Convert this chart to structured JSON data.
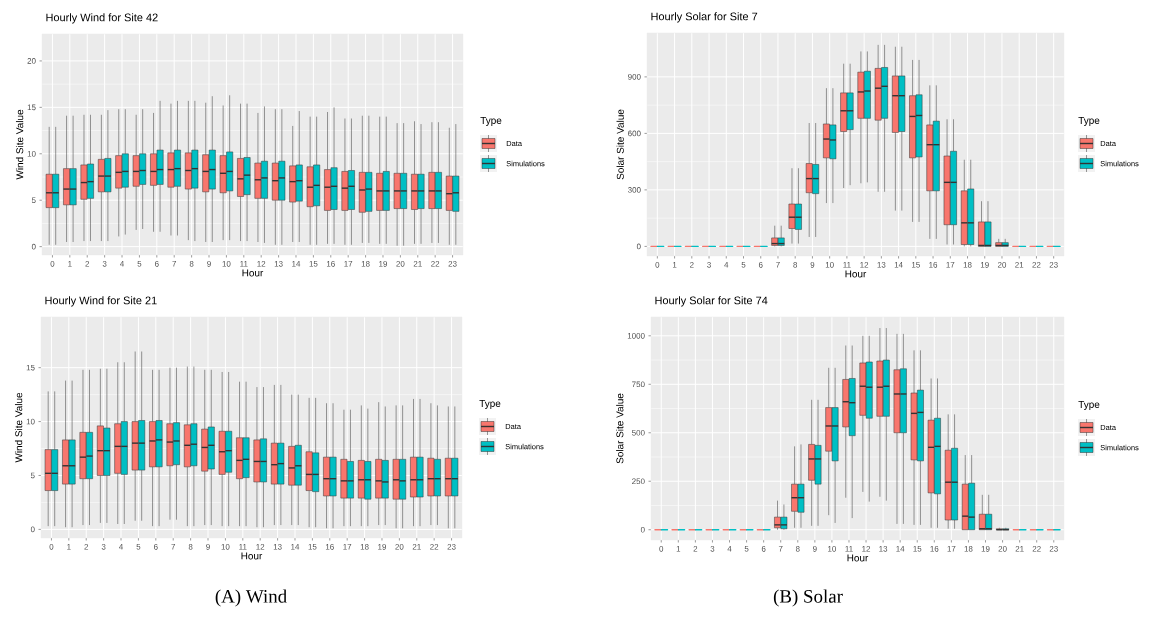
{
  "chart_data": [
    {
      "type": "box",
      "title": "Hourly Wind for Site 42",
      "xlabel": "Hour",
      "ylabel": "Wind Site Value",
      "legend_title": "Type",
      "legend": "right",
      "grid": true,
      "categories": [
        "0",
        "1",
        "2",
        "3",
        "4",
        "5",
        "6",
        "7",
        "8",
        "9",
        "10",
        "11",
        "12",
        "13",
        "14",
        "15",
        "16",
        "17",
        "18",
        "19",
        "20",
        "21",
        "22",
        "23"
      ],
      "ylim": [
        -0.9,
        22.9
      ],
      "yticks": [
        0,
        5,
        10,
        15,
        20
      ],
      "series": [
        {
          "name": "Data",
          "color": "#f8766d",
          "boxes": [
            {
              "low": 0.2,
              "q1": 4.2,
              "median": 5.8,
              "q3": 7.8,
              "high": 12.9
            },
            {
              "low": 0.5,
              "q1": 4.5,
              "median": 6.2,
              "q3": 8.4,
              "high": 14.1
            },
            {
              "low": 0.6,
              "q1": 5.1,
              "median": 6.9,
              "q3": 8.8,
              "high": 14.2
            },
            {
              "low": 0.6,
              "q1": 5.9,
              "median": 7.6,
              "q3": 9.4,
              "high": 14.2
            },
            {
              "low": 1.1,
              "q1": 6.3,
              "median": 8.0,
              "q3": 9.8,
              "high": 14.8
            },
            {
              "low": 1.8,
              "q1": 6.5,
              "median": 8.1,
              "q3": 9.8,
              "high": 14.2
            },
            {
              "low": 1.6,
              "q1": 6.6,
              "median": 8.1,
              "q3": 10.0,
              "high": 14.4
            },
            {
              "low": 1.2,
              "q1": 6.4,
              "median": 8.3,
              "q3": 10.1,
              "high": 15.4
            },
            {
              "low": 0.7,
              "q1": 6.2,
              "median": 8.2,
              "q3": 10.1,
              "high": 15.7
            },
            {
              "low": 0.5,
              "q1": 5.9,
              "median": 8.1,
              "q3": 9.9,
              "high": 15.5
            },
            {
              "low": 0.7,
              "q1": 5.8,
              "median": 7.9,
              "q3": 9.8,
              "high": 15.2
            },
            {
              "low": 0.6,
              "q1": 5.4,
              "median": 7.3,
              "q3": 9.5,
              "high": 15.4
            },
            {
              "low": 0.5,
              "q1": 5.2,
              "median": 7.2,
              "q3": 9.0,
              "high": 14.4
            },
            {
              "low": 0.2,
              "q1": 5.0,
              "median": 7.1,
              "q3": 9.0,
              "high": 14.8
            },
            {
              "low": 0.5,
              "q1": 4.8,
              "median": 7.0,
              "q3": 8.7,
              "high": 13.0
            },
            {
              "low": 0.2,
              "q1": 4.3,
              "median": 6.4,
              "q3": 8.6,
              "high": 14.0
            },
            {
              "low": 0.3,
              "q1": 3.9,
              "median": 6.4,
              "q3": 8.3,
              "high": 14.5
            },
            {
              "low": 0.2,
              "q1": 3.9,
              "median": 6.3,
              "q3": 8.1,
              "high": 13.8
            },
            {
              "low": 0.4,
              "q1": 3.7,
              "median": 6.1,
              "q3": 8.0,
              "high": 14.1
            },
            {
              "low": 0.3,
              "q1": 3.9,
              "median": 6.0,
              "q3": 7.9,
              "high": 14.0
            },
            {
              "low": 0.1,
              "q1": 4.1,
              "median": 6.0,
              "q3": 7.9,
              "high": 13.3
            },
            {
              "low": 0.3,
              "q1": 4.0,
              "median": 6.0,
              "q3": 7.8,
              "high": 13.5
            },
            {
              "low": 0.4,
              "q1": 4.1,
              "median": 6.0,
              "q3": 8.0,
              "high": 13.4
            },
            {
              "low": 0.2,
              "q1": 3.9,
              "median": 5.7,
              "q3": 7.6,
              "high": 12.8
            }
          ]
        },
        {
          "name": "Simulations",
          "color": "#00bfc4",
          "boxes": [
            {
              "low": 0.2,
              "q1": 4.2,
              "median": 5.8,
              "q3": 7.8,
              "high": 12.9
            },
            {
              "low": 0.5,
              "q1": 4.5,
              "median": 6.2,
              "q3": 8.4,
              "high": 14.1
            },
            {
              "low": 0.6,
              "q1": 5.2,
              "median": 7.0,
              "q3": 8.9,
              "high": 14.2
            },
            {
              "low": 0.6,
              "q1": 5.9,
              "median": 7.6,
              "q3": 9.5,
              "high": 14.7
            },
            {
              "low": 1.3,
              "q1": 6.4,
              "median": 8.1,
              "q3": 10.0,
              "high": 14.8
            },
            {
              "low": 1.9,
              "q1": 6.7,
              "median": 8.2,
              "q3": 10.0,
              "high": 14.8
            },
            {
              "low": 1.6,
              "q1": 6.7,
              "median": 8.3,
              "q3": 10.4,
              "high": 15.7
            },
            {
              "low": 1.2,
              "q1": 6.5,
              "median": 8.4,
              "q3": 10.4,
              "high": 15.7
            },
            {
              "low": 0.6,
              "q1": 6.3,
              "median": 8.4,
              "q3": 10.4,
              "high": 15.7
            },
            {
              "low": 0.5,
              "q1": 6.2,
              "median": 8.3,
              "q3": 10.4,
              "high": 16.2
            },
            {
              "low": 0.7,
              "q1": 6.0,
              "median": 8.1,
              "q3": 10.2,
              "high": 16.3
            },
            {
              "low": 0.6,
              "q1": 5.6,
              "median": 7.7,
              "q3": 9.6,
              "high": 15.4
            },
            {
              "low": 0.4,
              "q1": 5.2,
              "median": 7.4,
              "q3": 9.2,
              "high": 15.1
            },
            {
              "low": 0.2,
              "q1": 5.0,
              "median": 7.4,
              "q3": 9.2,
              "high": 14.8
            },
            {
              "low": 0.5,
              "q1": 4.9,
              "median": 7.1,
              "q3": 8.8,
              "high": 14.6
            },
            {
              "low": 0.2,
              "q1": 4.4,
              "median": 6.6,
              "q3": 8.8,
              "high": 14.0
            },
            {
              "low": 0.3,
              "q1": 4.0,
              "median": 6.5,
              "q3": 8.5,
              "high": 15.0
            },
            {
              "low": 0.2,
              "q1": 4.0,
              "median": 6.5,
              "q3": 8.2,
              "high": 13.8
            },
            {
              "low": 0.4,
              "q1": 3.8,
              "median": 6.2,
              "q3": 8.0,
              "high": 14.1
            },
            {
              "low": 0.3,
              "q1": 3.9,
              "median": 6.0,
              "q3": 8.1,
              "high": 14.0
            },
            {
              "low": 0.1,
              "q1": 4.1,
              "median": 6.0,
              "q3": 7.9,
              "high": 13.3
            },
            {
              "low": 0.3,
              "q1": 4.1,
              "median": 6.0,
              "q3": 7.8,
              "high": 13.2
            },
            {
              "low": 0.4,
              "q1": 4.1,
              "median": 6.0,
              "q3": 8.0,
              "high": 13.4
            },
            {
              "low": 0.2,
              "q1": 3.8,
              "median": 5.8,
              "q3": 7.6,
              "high": 13.2
            }
          ]
        }
      ]
    },
    {
      "type": "box",
      "title": "Hourly Solar for Site 7",
      "xlabel": "Hour",
      "ylabel": "Solar Site Value",
      "legend_title": "Type",
      "legend": "right",
      "grid": true,
      "categories": [
        "0",
        "1",
        "2",
        "3",
        "4",
        "5",
        "6",
        "7",
        "8",
        "9",
        "10",
        "11",
        "12",
        "13",
        "14",
        "15",
        "16",
        "17",
        "18",
        "19",
        "20",
        "21",
        "22",
        "23"
      ],
      "ylim": [
        -51,
        1133
      ],
      "yticks": [
        0,
        300,
        600,
        900
      ],
      "series": [
        {
          "name": "Data",
          "color": "#f8766d",
          "boxes": [
            {
              "low": 0,
              "q1": 0,
              "median": 0,
              "q3": 0,
              "high": 0
            },
            {
              "low": 0,
              "q1": 0,
              "median": 0,
              "q3": 0,
              "high": 0
            },
            {
              "low": 0,
              "q1": 0,
              "median": 0,
              "q3": 0,
              "high": 0
            },
            {
              "low": 0,
              "q1": 0,
              "median": 0,
              "q3": 0,
              "high": 0
            },
            {
              "low": 0,
              "q1": 0,
              "median": 0,
              "q3": 0,
              "high": 0
            },
            {
              "low": 0,
              "q1": 0,
              "median": 0,
              "q3": 0,
              "high": 0
            },
            {
              "low": 0,
              "q1": 0,
              "median": 0,
              "q3": 0,
              "high": 0
            },
            {
              "low": 0,
              "q1": 5,
              "median": 15,
              "q3": 45,
              "high": 110
            },
            {
              "low": 15,
              "q1": 95,
              "median": 155,
              "q3": 225,
              "high": 415
            },
            {
              "low": 50,
              "q1": 285,
              "median": 360,
              "q3": 440,
              "high": 655
            },
            {
              "low": 230,
              "q1": 470,
              "median": 570,
              "q3": 650,
              "high": 840
            },
            {
              "low": 310,
              "q1": 610,
              "median": 720,
              "q3": 815,
              "high": 970
            },
            {
              "low": 335,
              "q1": 680,
              "median": 820,
              "q3": 925,
              "high": 1035
            },
            {
              "low": 290,
              "q1": 670,
              "median": 840,
              "q3": 945,
              "high": 1070
            },
            {
              "low": 190,
              "q1": 605,
              "median": 800,
              "q3": 905,
              "high": 1060
            },
            {
              "low": 130,
              "q1": 470,
              "median": 690,
              "q3": 800,
              "high": 990
            },
            {
              "low": 40,
              "q1": 295,
              "median": 540,
              "q3": 645,
              "high": 855
            },
            {
              "low": 10,
              "q1": 115,
              "median": 340,
              "q3": 480,
              "high": 675
            },
            {
              "low": 0,
              "q1": 10,
              "median": 125,
              "q3": 295,
              "high": 460
            },
            {
              "low": 0,
              "q1": 0,
              "median": 5,
              "q3": 130,
              "high": 240
            },
            {
              "low": 0,
              "q1": 0,
              "median": 5,
              "q3": 20,
              "high": 40
            },
            {
              "low": 0,
              "q1": 0,
              "median": 0,
              "q3": 0,
              "high": 0
            },
            {
              "low": 0,
              "q1": 0,
              "median": 0,
              "q3": 0,
              "high": 0
            },
            {
              "low": 0,
              "q1": 0,
              "median": 0,
              "q3": 0,
              "high": 0
            }
          ]
        },
        {
          "name": "Simulations",
          "color": "#00bfc4",
          "boxes": [
            {
              "low": 0,
              "q1": 0,
              "median": 0,
              "q3": 0,
              "high": 0
            },
            {
              "low": 0,
              "q1": 0,
              "median": 0,
              "q3": 0,
              "high": 0
            },
            {
              "low": 0,
              "q1": 0,
              "median": 0,
              "q3": 0,
              "high": 0
            },
            {
              "low": 0,
              "q1": 0,
              "median": 0,
              "q3": 0,
              "high": 0
            },
            {
              "low": 0,
              "q1": 0,
              "median": 0,
              "q3": 0,
              "high": 0
            },
            {
              "low": 0,
              "q1": 0,
              "median": 0,
              "q3": 0,
              "high": 0
            },
            {
              "low": 0,
              "q1": 0,
              "median": 0,
              "q3": 0,
              "high": 0
            },
            {
              "low": 0,
              "q1": 5,
              "median": 15,
              "q3": 45,
              "high": 110
            },
            {
              "low": 15,
              "q1": 90,
              "median": 155,
              "q3": 225,
              "high": 415
            },
            {
              "low": 50,
              "q1": 280,
              "median": 360,
              "q3": 435,
              "high": 655
            },
            {
              "low": 230,
              "q1": 465,
              "median": 565,
              "q3": 645,
              "high": 840
            },
            {
              "low": 325,
              "q1": 620,
              "median": 720,
              "q3": 815,
              "high": 970
            },
            {
              "low": 340,
              "q1": 680,
              "median": 825,
              "q3": 930,
              "high": 1035
            },
            {
              "low": 290,
              "q1": 680,
              "median": 850,
              "q3": 950,
              "high": 1070
            },
            {
              "low": 190,
              "q1": 610,
              "median": 800,
              "q3": 905,
              "high": 1060
            },
            {
              "low": 130,
              "q1": 475,
              "median": 695,
              "q3": 805,
              "high": 990
            },
            {
              "low": 40,
              "q1": 295,
              "median": 540,
              "q3": 665,
              "high": 855
            },
            {
              "low": 10,
              "q1": 115,
              "median": 340,
              "q3": 505,
              "high": 675
            },
            {
              "low": 0,
              "q1": 10,
              "median": 125,
              "q3": 305,
              "high": 460
            },
            {
              "low": 0,
              "q1": 0,
              "median": 5,
              "q3": 130,
              "high": 240
            },
            {
              "low": 0,
              "q1": 0,
              "median": 5,
              "q3": 20,
              "high": 40
            },
            {
              "low": 0,
              "q1": 0,
              "median": 0,
              "q3": 0,
              "high": 0
            },
            {
              "low": 0,
              "q1": 0,
              "median": 0,
              "q3": 0,
              "high": 0
            },
            {
              "low": 0,
              "q1": 0,
              "median": 0,
              "q3": 0,
              "high": 0
            }
          ]
        }
      ]
    },
    {
      "type": "box",
      "title": "Hourly Wind for Site 21",
      "xlabel": "Hour",
      "ylabel": "Wind Site Value",
      "legend_title": "Type",
      "legend": "right",
      "grid": true,
      "categories": [
        "0",
        "1",
        "2",
        "3",
        "4",
        "5",
        "6",
        "7",
        "8",
        "9",
        "10",
        "11",
        "12",
        "13",
        "14",
        "15",
        "16",
        "17",
        "18",
        "19",
        "20",
        "21",
        "22",
        "23"
      ],
      "ylim": [
        -0.8,
        19.7
      ],
      "yticks": [
        0,
        5,
        10,
        15
      ],
      "annotations": [
        "(A) Wind"
      ],
      "series": [
        {
          "name": "Data",
          "color": "#f8766d",
          "boxes": [
            {
              "low": 0.3,
              "q1": 3.6,
              "median": 5.2,
              "q3": 7.4,
              "high": 12.8
            },
            {
              "low": 0.2,
              "q1": 4.2,
              "median": 5.9,
              "q3": 8.3,
              "high": 13.8
            },
            {
              "low": 0.4,
              "q1": 4.7,
              "median": 6.7,
              "q3": 9.0,
              "high": 14.8
            },
            {
              "low": 0.6,
              "q1": 5.0,
              "median": 7.3,
              "q3": 9.6,
              "high": 14.9
            },
            {
              "low": 0.5,
              "q1": 5.2,
              "median": 7.7,
              "q3": 9.8,
              "high": 15.5
            },
            {
              "low": 0.8,
              "q1": 5.5,
              "median": 8.0,
              "q3": 10.0,
              "high": 16.5
            },
            {
              "low": 0.3,
              "q1": 5.8,
              "median": 8.2,
              "q3": 10.0,
              "high": 14.8
            },
            {
              "low": 0.9,
              "q1": 5.9,
              "median": 8.1,
              "q3": 9.8,
              "high": 15.0
            },
            {
              "low": 0.3,
              "q1": 5.8,
              "median": 7.8,
              "q3": 9.7,
              "high": 15.1
            },
            {
              "low": 0.4,
              "q1": 5.4,
              "median": 7.6,
              "q3": 9.3,
              "high": 14.8
            },
            {
              "low": 0.3,
              "q1": 5.1,
              "median": 7.2,
              "q3": 9.1,
              "high": 14.6
            },
            {
              "low": 0.3,
              "q1": 4.7,
              "median": 6.4,
              "q3": 8.5,
              "high": 13.7
            },
            {
              "low": 0.2,
              "q1": 4.4,
              "median": 6.3,
              "q3": 8.3,
              "high": 13.2
            },
            {
              "low": 0.4,
              "q1": 4.2,
              "median": 6.0,
              "q3": 8.0,
              "high": 13.4
            },
            {
              "low": 0.4,
              "q1": 4.1,
              "median": 5.7,
              "q3": 7.7,
              "high": 12.5
            },
            {
              "low": 0.2,
              "q1": 3.6,
              "median": 5.1,
              "q3": 7.2,
              "high": 12.2
            },
            {
              "low": 0.1,
              "q1": 3.1,
              "median": 4.7,
              "q3": 6.7,
              "high": 11.7
            },
            {
              "low": 0.3,
              "q1": 2.9,
              "median": 4.5,
              "q3": 6.5,
              "high": 11.1
            },
            {
              "low": 0.3,
              "q1": 2.9,
              "median": 4.6,
              "q3": 6.4,
              "high": 11.5
            },
            {
              "low": 0.4,
              "q1": 2.9,
              "median": 4.5,
              "q3": 6.5,
              "high": 11.8
            },
            {
              "low": 0.1,
              "q1": 2.8,
              "median": 4.6,
              "q3": 6.5,
              "high": 11.5
            },
            {
              "low": 0.3,
              "q1": 3.0,
              "median": 4.6,
              "q3": 6.7,
              "high": 12.1
            },
            {
              "low": 0.4,
              "q1": 3.1,
              "median": 4.7,
              "q3": 6.6,
              "high": 11.7
            },
            {
              "low": 0.1,
              "q1": 3.1,
              "median": 4.7,
              "q3": 6.6,
              "high": 11.4
            }
          ]
        },
        {
          "name": "Simulations",
          "color": "#00bfc4",
          "boxes": [
            {
              "low": 0.3,
              "q1": 3.6,
              "median": 5.2,
              "q3": 7.4,
              "high": 12.8
            },
            {
              "low": 0.2,
              "q1": 4.2,
              "median": 5.9,
              "q3": 8.3,
              "high": 13.8
            },
            {
              "low": 0.4,
              "q1": 4.7,
              "median": 6.8,
              "q3": 9.0,
              "high": 14.8
            },
            {
              "low": 0.6,
              "q1": 5.0,
              "median": 7.3,
              "q3": 9.4,
              "high": 14.9
            },
            {
              "low": 0.5,
              "q1": 5.1,
              "median": 7.7,
              "q3": 10.0,
              "high": 15.5
            },
            {
              "low": 0.8,
              "q1": 5.5,
              "median": 8.0,
              "q3": 10.1,
              "high": 16.5
            },
            {
              "low": 0.3,
              "q1": 5.8,
              "median": 8.3,
              "q3": 10.1,
              "high": 14.8
            },
            {
              "low": 0.9,
              "q1": 6.0,
              "median": 8.2,
              "q3": 9.9,
              "high": 15.0
            },
            {
              "low": 0.3,
              "q1": 5.9,
              "median": 7.9,
              "q3": 9.8,
              "high": 15.1
            },
            {
              "low": 0.4,
              "q1": 5.6,
              "median": 7.8,
              "q3": 9.5,
              "high": 14.8
            },
            {
              "low": 0.3,
              "q1": 5.3,
              "median": 7.3,
              "q3": 9.1,
              "high": 14.6
            },
            {
              "low": 0.3,
              "q1": 4.8,
              "median": 6.5,
              "q3": 8.5,
              "high": 13.7
            },
            {
              "low": 0.2,
              "q1": 4.4,
              "median": 6.3,
              "q3": 8.4,
              "high": 13.2
            },
            {
              "low": 0.4,
              "q1": 4.2,
              "median": 6.1,
              "q3": 8.0,
              "high": 13.4
            },
            {
              "low": 0.4,
              "q1": 4.1,
              "median": 5.9,
              "q3": 7.8,
              "high": 12.5
            },
            {
              "low": 0.2,
              "q1": 3.5,
              "median": 5.1,
              "q3": 7.1,
              "high": 12.2
            },
            {
              "low": 0.1,
              "q1": 3.1,
              "median": 4.7,
              "q3": 6.7,
              "high": 11.7
            },
            {
              "low": 0.3,
              "q1": 2.9,
              "median": 4.5,
              "q3": 6.3,
              "high": 11.1
            },
            {
              "low": 0.3,
              "q1": 2.8,
              "median": 4.6,
              "q3": 6.3,
              "high": 11.2
            },
            {
              "low": 0.4,
              "q1": 2.9,
              "median": 4.4,
              "q3": 6.4,
              "high": 11.4
            },
            {
              "low": 0.1,
              "q1": 2.8,
              "median": 4.5,
              "q3": 6.5,
              "high": 11.5
            },
            {
              "low": 0.3,
              "q1": 3.0,
              "median": 4.6,
              "q3": 6.7,
              "high": 12.1
            },
            {
              "low": 0.4,
              "q1": 3.1,
              "median": 4.7,
              "q3": 6.5,
              "high": 11.5
            },
            {
              "low": 0.1,
              "q1": 3.1,
              "median": 4.7,
              "q3": 6.6,
              "high": 11.4
            }
          ]
        }
      ]
    },
    {
      "type": "box",
      "title": "Hourly Solar for Site 74",
      "xlabel": "Hour",
      "ylabel": "Solar Site Value",
      "legend_title": "Type",
      "legend": "right",
      "grid": true,
      "categories": [
        "0",
        "1",
        "2",
        "3",
        "4",
        "5",
        "6",
        "7",
        "8",
        "9",
        "10",
        "11",
        "12",
        "13",
        "14",
        "15",
        "16",
        "17",
        "18",
        "19",
        "20",
        "21",
        "22",
        "23"
      ],
      "ylim": [
        -53,
        1097
      ],
      "yticks": [
        0,
        250,
        500,
        750,
        1000
      ],
      "annotations": [
        "(B) Solar"
      ],
      "series": [
        {
          "name": "Data",
          "color": "#f8766d",
          "boxes": [
            {
              "low": 0,
              "q1": 0,
              "median": 0,
              "q3": 0,
              "high": 0
            },
            {
              "low": 0,
              "q1": 0,
              "median": 0,
              "q3": 0,
              "high": 0
            },
            {
              "low": 0,
              "q1": 0,
              "median": 0,
              "q3": 0,
              "high": 0
            },
            {
              "low": 0,
              "q1": 0,
              "median": 0,
              "q3": 0,
              "high": 0
            },
            {
              "low": 0,
              "q1": 0,
              "median": 0,
              "q3": 0,
              "high": 0
            },
            {
              "low": 0,
              "q1": 0,
              "median": 0,
              "q3": 0,
              "high": 0
            },
            {
              "low": 0,
              "q1": 0,
              "median": 0,
              "q3": 0,
              "high": 0
            },
            {
              "low": 0,
              "q1": 10,
              "median": 25,
              "q3": 65,
              "high": 150
            },
            {
              "low": 10,
              "q1": 95,
              "median": 165,
              "q3": 235,
              "high": 430
            },
            {
              "low": 20,
              "q1": 255,
              "median": 365,
              "q3": 440,
              "high": 670
            },
            {
              "low": 75,
              "q1": 405,
              "median": 535,
              "q3": 630,
              "high": 835
            },
            {
              "low": 165,
              "q1": 530,
              "median": 660,
              "q3": 775,
              "high": 950
            },
            {
              "low": 195,
              "q1": 590,
              "median": 740,
              "q3": 860,
              "high": 1000
            },
            {
              "low": 170,
              "q1": 585,
              "median": 735,
              "q3": 870,
              "high": 1040
            },
            {
              "low": 30,
              "q1": 500,
              "median": 700,
              "q3": 825,
              "high": 1010
            },
            {
              "low": 25,
              "q1": 360,
              "median": 600,
              "q3": 705,
              "high": 925
            },
            {
              "low": 10,
              "q1": 190,
              "median": 425,
              "q3": 565,
              "high": 780
            },
            {
              "low": 5,
              "q1": 50,
              "median": 245,
              "q3": 410,
              "high": 595
            },
            {
              "low": 0,
              "q1": 0,
              "median": 70,
              "q3": 235,
              "high": 385
            },
            {
              "low": 0,
              "q1": 0,
              "median": 5,
              "q3": 80,
              "high": 180
            },
            {
              "low": 0,
              "q1": 0,
              "median": 0,
              "q3": 5,
              "high": 10
            },
            {
              "low": 0,
              "q1": 0,
              "median": 0,
              "q3": 0,
              "high": 0
            },
            {
              "low": 0,
              "q1": 0,
              "median": 0,
              "q3": 0,
              "high": 0
            },
            {
              "low": 0,
              "q1": 0,
              "median": 0,
              "q3": 0,
              "high": 0
            }
          ]
        },
        {
          "name": "Simulations",
          "color": "#00bfc4",
          "boxes": [
            {
              "low": 0,
              "q1": 0,
              "median": 0,
              "q3": 0,
              "high": 0
            },
            {
              "low": 0,
              "q1": 0,
              "median": 0,
              "q3": 0,
              "high": 0
            },
            {
              "low": 0,
              "q1": 0,
              "median": 0,
              "q3": 0,
              "high": 0
            },
            {
              "low": 0,
              "q1": 0,
              "median": 0,
              "q3": 0,
              "high": 0
            },
            {
              "low": 0,
              "q1": 0,
              "median": 0,
              "q3": 0,
              "high": 0
            },
            {
              "low": 0,
              "q1": 0,
              "median": 0,
              "q3": 0,
              "high": 0
            },
            {
              "low": 0,
              "q1": 0,
              "median": 0,
              "q3": 0,
              "high": 0
            },
            {
              "low": 0,
              "q1": 5,
              "median": 25,
              "q3": 65,
              "high": 130
            },
            {
              "low": 10,
              "q1": 90,
              "median": 165,
              "q3": 235,
              "high": 440
            },
            {
              "low": 20,
              "q1": 235,
              "median": 365,
              "q3": 435,
              "high": 670
            },
            {
              "low": 35,
              "q1": 355,
              "median": 535,
              "q3": 630,
              "high": 835
            },
            {
              "low": 60,
              "q1": 485,
              "median": 655,
              "q3": 780,
              "high": 950
            },
            {
              "low": 145,
              "q1": 575,
              "median": 735,
              "q3": 865,
              "high": 1000
            },
            {
              "low": 150,
              "q1": 585,
              "median": 740,
              "q3": 875,
              "high": 1040
            },
            {
              "low": 30,
              "q1": 500,
              "median": 700,
              "q3": 830,
              "high": 1010
            },
            {
              "low": 25,
              "q1": 355,
              "median": 605,
              "q3": 720,
              "high": 925
            },
            {
              "low": 10,
              "q1": 185,
              "median": 430,
              "q3": 575,
              "high": 780
            },
            {
              "low": 5,
              "q1": 50,
              "median": 245,
              "q3": 420,
              "high": 595
            },
            {
              "low": 0,
              "q1": 0,
              "median": 65,
              "q3": 240,
              "high": 385
            },
            {
              "low": 0,
              "q1": 0,
              "median": 5,
              "q3": 80,
              "high": 180
            },
            {
              "low": 0,
              "q1": 0,
              "median": 0,
              "q3": 5,
              "high": 10
            },
            {
              "low": 0,
              "q1": 0,
              "median": 0,
              "q3": 0,
              "high": 0
            },
            {
              "low": 0,
              "q1": 0,
              "median": 0,
              "q3": 0,
              "high": 0
            },
            {
              "low": 0,
              "q1": 0,
              "median": 0,
              "q3": 0,
              "high": 0
            }
          ]
        }
      ]
    }
  ]
}
